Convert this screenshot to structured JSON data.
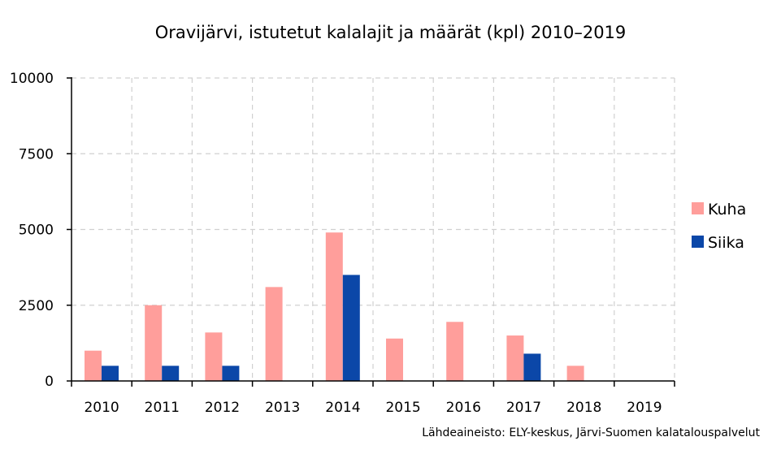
{
  "chart_data": {
    "type": "bar",
    "title": "Oravijärvi, istutetut kalalajit ja määrät (kpl) 2010–2019",
    "xlabel": "",
    "ylabel": "",
    "categories": [
      "2010",
      "2011",
      "2012",
      "2013",
      "2014",
      "2015",
      "2016",
      "2017",
      "2018",
      "2019"
    ],
    "series": [
      {
        "name": "Kuha",
        "color": "#ff9e9b",
        "values": [
          1000,
          2500,
          1600,
          3100,
          4900,
          1400,
          1950,
          1500,
          500,
          0
        ]
      },
      {
        "name": "Siika",
        "color": "#0b47a8",
        "values": [
          500,
          500,
          500,
          0,
          3500,
          0,
          0,
          900,
          0,
          0
        ]
      }
    ],
    "ylim": [
      0,
      10000
    ],
    "yticks": [
      0,
      2500,
      5000,
      7500,
      10000
    ],
    "grid": true,
    "legend_position": "right"
  },
  "source_note": "Lähdeaineisto: ELY-keskus, Järvi-Suomen kalatalouspalvelut"
}
